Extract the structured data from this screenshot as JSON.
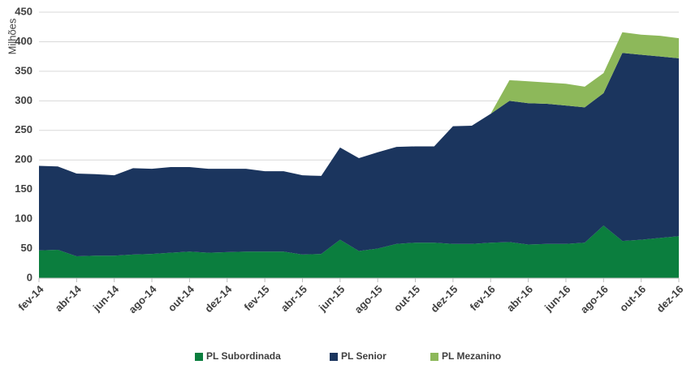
{
  "chart_data": {
    "type": "stacked-area",
    "y_label": "Milhões",
    "categories": [
      "fev-14",
      null,
      "abr-14",
      null,
      "jun-14",
      null,
      "ago-14",
      null,
      "out-14",
      null,
      "dez-14",
      null,
      "fev-15",
      null,
      "abr-15",
      null,
      "jun-15",
      null,
      "ago-15",
      null,
      "out-15",
      null,
      "dez-15",
      null,
      "fev-16",
      null,
      "abr-16",
      null,
      "jun-16",
      null,
      "ago-16",
      null,
      "out-16",
      null,
      "dez-16"
    ],
    "series": [
      {
        "name": "PL Subordinada",
        "color": "#0b7e3e",
        "values": [
          47,
          48,
          37,
          38,
          38,
          40,
          41,
          43,
          45,
          43,
          44,
          45,
          45,
          45,
          40,
          41,
          65,
          46,
          50,
          58,
          60,
          60,
          58,
          58,
          60,
          61,
          57,
          58,
          58,
          60,
          89,
          63,
          65,
          68,
          71
        ]
      },
      {
        "name": "PL Senior",
        "color": "#1b355e",
        "values": [
          143,
          141,
          140,
          138,
          136,
          146,
          144,
          145,
          143,
          142,
          141,
          140,
          136,
          136,
          134,
          132,
          156,
          157,
          163,
          164,
          163,
          163,
          199,
          200,
          218,
          239,
          239,
          237,
          234,
          229,
          224,
          318,
          313,
          307,
          301
        ]
      },
      {
        "name": "PL Mezanino",
        "color": "#8db85a",
        "values": [
          0,
          0,
          0,
          0,
          0,
          0,
          0,
          0,
          0,
          0,
          0,
          0,
          0,
          0,
          0,
          0,
          0,
          0,
          0,
          0,
          0,
          0,
          0,
          0,
          0,
          35,
          37,
          36,
          37,
          35,
          34,
          35,
          34,
          35,
          34
        ]
      }
    ],
    "ylim": [
      0,
      450
    ],
    "yticks": [
      0,
      50,
      100,
      150,
      200,
      250,
      300,
      350,
      400,
      450
    ],
    "grid": true,
    "legend": "bottom"
  }
}
